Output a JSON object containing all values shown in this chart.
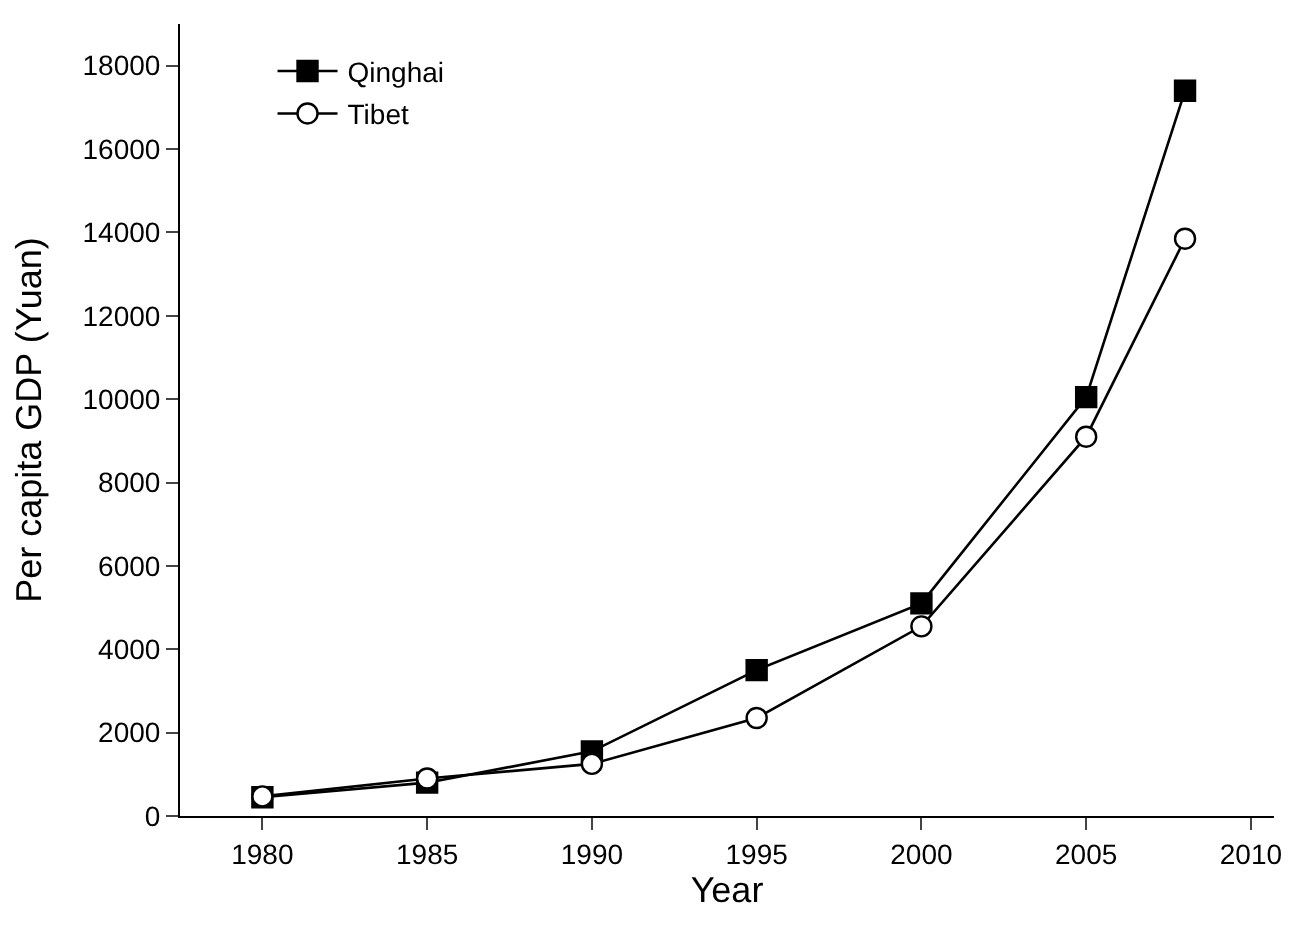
{
  "chart_data": {
    "type": "line",
    "xlabel": "Year",
    "ylabel": "Per capita GDP (Yuan)",
    "x": [
      1980,
      1985,
      1990,
      1995,
      2000,
      2005,
      2008
    ],
    "series": [
      {
        "name": "Qinghai",
        "color": "#000000",
        "marker": "square",
        "values": [
          450,
          800,
          1550,
          3500,
          5100,
          10050,
          17400
        ]
      },
      {
        "name": "Tibet",
        "color": "#000000",
        "marker": "circle",
        "values": [
          470,
          900,
          1250,
          2350,
          4550,
          9100,
          13850
        ]
      }
    ],
    "xlim": [
      1977.5,
      2010.7
    ],
    "xticks": [
      1980,
      1985,
      1990,
      1995,
      2000,
      2005,
      2010
    ],
    "ylim": [
      0,
      19000
    ],
    "yticks": [
      0,
      2000,
      4000,
      6000,
      8000,
      10000,
      12000,
      14000,
      16000,
      18000
    ],
    "legend": "top left",
    "line_style": "solid"
  }
}
